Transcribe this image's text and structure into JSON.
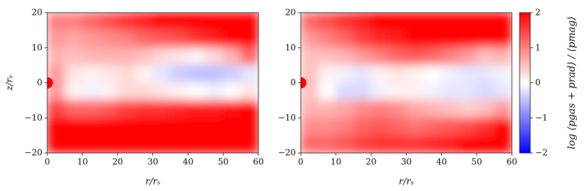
{
  "chart_data": [
    {
      "type": "heatmap",
      "xlabel": "r/rₛ",
      "ylabel": "z/rₛ",
      "x": [
        2.5,
        7.5,
        12.5,
        17.5,
        22.5,
        27.5,
        32.5,
        37.5,
        42.5,
        47.5,
        52.5,
        57.5
      ],
      "y": [
        17.5,
        12.5,
        7.5,
        2.5,
        -2.5,
        -7.5,
        -12.5,
        -17.5
      ],
      "values": [
        [
          1.0,
          1.0,
          1.2,
          1.4,
          1.6,
          1.8,
          2,
          2,
          2,
          2,
          2,
          2
        ],
        [
          0.8,
          0.7,
          0.8,
          0.9,
          1.0,
          1.2,
          1.3,
          1.4,
          1.6,
          1.8,
          2,
          2
        ],
        [
          0.6,
          0.5,
          0.6,
          0.6,
          0.6,
          0.5,
          0.3,
          0.2,
          0.1,
          0.3,
          0.6,
          1.2
        ],
        [
          0.8,
          0.2,
          0.1,
          0.2,
          0.3,
          0.1,
          -0.2,
          -0.4,
          -0.5,
          -0.5,
          -0.4,
          -0.2
        ],
        [
          0.8,
          0.1,
          -0.1,
          0.1,
          0.3,
          0.3,
          0.2,
          0.1,
          0.0,
          -0.1,
          0.0,
          0.2
        ],
        [
          1.5,
          1.2,
          1.2,
          1.3,
          1.5,
          1.6,
          1.6,
          1.7,
          1.8,
          1.8,
          1.9,
          2
        ],
        [
          2,
          2,
          2,
          2,
          2,
          2,
          2,
          2,
          2,
          2,
          2,
          2
        ],
        [
          2,
          2,
          2,
          2,
          2,
          2,
          2,
          2,
          2,
          2,
          2,
          2
        ]
      ],
      "xlim": [
        0,
        60
      ],
      "ylim": [
        -20,
        20
      ],
      "xticks": [
        0,
        10,
        20,
        30,
        40,
        50,
        60
      ],
      "yticks": [
        {
          "value": -20,
          "label": "−20"
        },
        {
          "value": -10,
          "label": "−10"
        },
        0,
        10,
        20
      ],
      "colormap": "bwr",
      "clim": [
        -2,
        2
      ]
    },
    {
      "type": "heatmap",
      "xlabel": "r/rₛ",
      "x": [
        2.5,
        7.5,
        12.5,
        17.5,
        22.5,
        27.5,
        32.5,
        37.5,
        42.5,
        47.5,
        52.5,
        57.5
      ],
      "y": [
        17.5,
        12.5,
        7.5,
        2.5,
        -2.5,
        -7.5,
        -12.5,
        -17.5
      ],
      "values": [
        [
          1.2,
          1.4,
          1.6,
          1.8,
          2,
          2,
          2,
          2,
          2,
          2,
          2,
          2
        ],
        [
          0.8,
          1.0,
          1.2,
          1.5,
          1.7,
          1.8,
          2,
          2,
          2,
          2,
          2,
          2
        ],
        [
          0.5,
          0.5,
          0.6,
          0.8,
          1.0,
          1.2,
          1.3,
          1.2,
          1.0,
          0.8,
          0.5,
          0.6
        ],
        [
          0.5,
          0.1,
          -0.1,
          -0.2,
          0.1,
          0.2,
          0.1,
          0.0,
          -0.1,
          -0.2,
          -0.2,
          -0.1
        ],
        [
          0.5,
          0.0,
          -0.3,
          -0.3,
          -0.1,
          0.1,
          0.1,
          -0.1,
          -0.2,
          -0.2,
          -0.3,
          -0.2
        ],
        [
          0.6,
          0.6,
          0.7,
          0.9,
          1.0,
          0.9,
          0.7,
          0.6,
          0.5,
          0.4,
          0.5,
          0.8
        ],
        [
          0.9,
          0.9,
          1.0,
          1.2,
          1.3,
          1.2,
          1.1,
          1.2,
          1.3,
          1.4,
          1.6,
          2
        ],
        [
          1.2,
          1.2,
          1.3,
          1.5,
          1.6,
          1.6,
          1.6,
          1.7,
          1.8,
          2,
          2,
          2
        ]
      ],
      "xlim": [
        0,
        60
      ],
      "ylim": [
        -20,
        20
      ],
      "xticks": [
        0,
        10,
        20,
        30,
        40,
        50,
        60
      ],
      "yticks": [
        {
          "value": -20,
          "label": "−20"
        },
        {
          "value": -10,
          "label": "−10"
        },
        0,
        10,
        20
      ],
      "colormap": "bwr",
      "clim": [
        -2,
        2
      ],
      "colorbar": {
        "label": "log ⟨pgas + prad⟩ / ⟨pmag⟩",
        "ticks": [
          {
            "value": -2,
            "label": "−2"
          },
          {
            "value": -1,
            "label": "−1"
          },
          0,
          1,
          2
        ]
      }
    }
  ]
}
